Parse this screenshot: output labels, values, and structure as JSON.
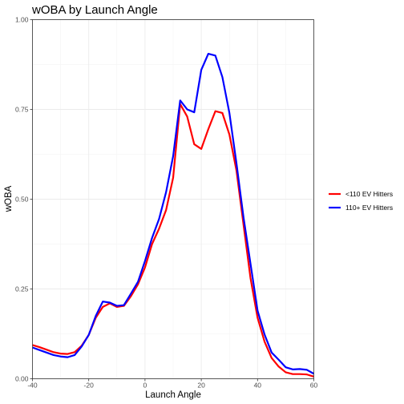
{
  "chart_data": {
    "type": "line",
    "title": "wOBA by Launch Angle",
    "xlabel": "Launch Angle",
    "ylabel": "wOBA",
    "xlim": [
      -40,
      60
    ],
    "ylim": [
      0,
      1
    ],
    "x_ticks": [
      "-40",
      "-20",
      "0",
      "20",
      "40",
      "60"
    ],
    "y_ticks": [
      "0.00",
      "0.25",
      "0.50",
      "0.75",
      "1.00"
    ],
    "grid": true,
    "legend_position": "right",
    "series": [
      {
        "name": "<110 EV Hitters",
        "color": "#ff0000",
        "x": [
          -40,
          -37.5,
          -35,
          -32.5,
          -30,
          -27.5,
          -25,
          -22.5,
          -20,
          -17.5,
          -15,
          -12.5,
          -10,
          -7.5,
          -5,
          -2.5,
          0,
          2.5,
          5,
          7.5,
          10,
          12.5,
          15,
          17.5,
          20,
          22.5,
          25,
          27.5,
          30,
          32.5,
          35,
          37.5,
          40,
          42.5,
          45,
          47.5,
          50,
          52.5,
          55,
          57.5,
          60
        ],
        "y": [
          0.094,
          0.088,
          0.081,
          0.074,
          0.07,
          0.069,
          0.074,
          0.092,
          0.122,
          0.17,
          0.2,
          0.21,
          0.2,
          0.203,
          0.23,
          0.263,
          0.31,
          0.375,
          0.418,
          0.47,
          0.56,
          0.765,
          0.73,
          0.653,
          0.64,
          0.695,
          0.745,
          0.74,
          0.68,
          0.58,
          0.43,
          0.28,
          0.17,
          0.103,
          0.058,
          0.034,
          0.018,
          0.013,
          0.013,
          0.012,
          0.006
        ]
      },
      {
        "name": "110+ EV Hitters",
        "color": "#0000ff",
        "x": [
          -40,
          -37.5,
          -35,
          -32.5,
          -30,
          -27.5,
          -25,
          -22.5,
          -20,
          -17.5,
          -15,
          -12.5,
          -10,
          -7.5,
          -5,
          -2.5,
          0,
          2.5,
          5,
          7.5,
          10,
          12.5,
          15,
          17.5,
          20,
          22.5,
          25,
          27.5,
          30,
          32.5,
          35,
          37.5,
          40,
          42.5,
          45,
          47.5,
          50,
          52.5,
          55,
          57.5,
          60
        ],
        "y": [
          0.087,
          0.08,
          0.073,
          0.066,
          0.062,
          0.06,
          0.066,
          0.09,
          0.122,
          0.175,
          0.215,
          0.212,
          0.203,
          0.205,
          0.237,
          0.27,
          0.328,
          0.392,
          0.445,
          0.52,
          0.62,
          0.775,
          0.75,
          0.742,
          0.86,
          0.905,
          0.9,
          0.84,
          0.74,
          0.6,
          0.45,
          0.32,
          0.19,
          0.123,
          0.073,
          0.053,
          0.032,
          0.026,
          0.027,
          0.025,
          0.014
        ]
      }
    ]
  }
}
